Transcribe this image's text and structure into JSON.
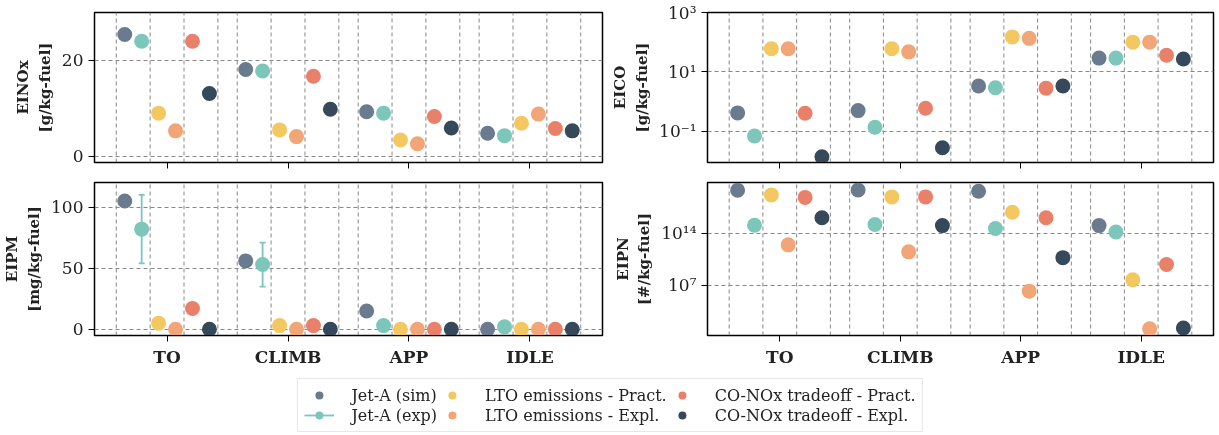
{
  "chart_data": [
    {
      "type": "scatter",
      "ylabel": "EINOx\n[g/kg-fuel]",
      "categories": [
        "TO",
        "CLIMB",
        "APP",
        "IDLE"
      ],
      "ylim": [
        -1.3,
        30
      ],
      "yticks": [
        0,
        20
      ],
      "grid": true,
      "tick_labels": "y",
      "legend": "bottom",
      "marker": "circle",
      "series": [
        {
          "name": "Jet-A (sim)",
          "color": "#6b7b8f",
          "values": [
            25.4,
            18.1,
            9.3,
            4.8
          ]
        },
        {
          "name": "Jet-A (exp)",
          "color": "#7cc6ba",
          "values": [
            24.0,
            17.8,
            9.0,
            4.3
          ]
        },
        {
          "name": "LTO emissions - Pract.",
          "color": "#f4c860",
          "values": [
            9.0,
            5.5,
            3.4,
            6.9
          ]
        },
        {
          "name": "LTO emissions - Expl.",
          "color": "#f2a576",
          "values": [
            5.3,
            4.1,
            2.6,
            8.8
          ]
        },
        {
          "name": "CO-NOx tradeoff - Pract.",
          "color": "#e9806a",
          "values": [
            24.0,
            16.7,
            8.3,
            5.8
          ]
        },
        {
          "name": "CO-NOx tradeoff - Expl.",
          "color": "#36495a",
          "values": [
            13.1,
            9.8,
            5.9,
            5.3
          ]
        }
      ]
    },
    {
      "type": "scatter",
      "ylabel": "EICO\n[g/kg-fuel]",
      "categories": [
        "TO",
        "CLIMB",
        "APP",
        "IDLE"
      ],
      "log": true,
      "ylim": [
        0.0087,
        1000
      ],
      "yticks": [
        {
          "value": 0.1,
          "label": "10⁻¹"
        },
        {
          "value": 10,
          "label": "10¹"
        },
        {
          "value": 1000,
          "label": "10³"
        }
      ],
      "grid": true,
      "tick_labels": "y",
      "marker": "circle",
      "series": [
        {
          "color": "#6b7b8f",
          "values": [
            0.41,
            0.49,
            3.3,
            29
          ]
        },
        {
          "color": "#7cc6ba",
          "values": [
            0.068,
            0.135,
            2.9,
            29
          ]
        },
        {
          "color": "#f4c860",
          "values": [
            60,
            60,
            150,
            100
          ]
        },
        {
          "color": "#f2a576",
          "values": [
            60,
            47,
            134,
            100
          ]
        },
        {
          "color": "#e9806a",
          "values": [
            0.4,
            0.59,
            2.8,
            36
          ]
        },
        {
          "color": "#36495a",
          "values": [
            0.0135,
            0.0275,
            3.3,
            27
          ]
        }
      ]
    },
    {
      "type": "scatter",
      "ylabel": "EIPM\n[mg/kg-fuel]",
      "categories": [
        "TO",
        "CLIMB",
        "APP",
        "IDLE"
      ],
      "ylim": [
        -5.1,
        120.2
      ],
      "yticks": [
        0,
        50,
        100
      ],
      "grid": true,
      "marker": "circle",
      "series": [
        {
          "color": "#6b7b8f",
          "values": [
            105,
            56,
            15,
            0
          ]
        },
        {
          "color": "#7cc6ba",
          "values": [
            82,
            53,
            3,
            2
          ],
          "errors": [
            [
              54,
              110
            ],
            [
              35,
              71
            ],
            null,
            null
          ]
        },
        {
          "color": "#f4c860",
          "values": [
            5,
            3,
            0,
            0
          ]
        },
        {
          "color": "#f2a576",
          "values": [
            0,
            0,
            0,
            0
          ]
        },
        {
          "color": "#e9806a",
          "values": [
            17,
            3,
            0,
            0
          ]
        },
        {
          "color": "#36495a",
          "values": [
            0,
            0,
            0,
            0
          ]
        }
      ]
    },
    {
      "type": "scatter",
      "ylabel": "EIPN\n[#/kg-fuel]",
      "categories": [
        "TO",
        "CLIMB",
        "APP",
        "IDLE"
      ],
      "log": true,
      "ylim": [
        1.8,
        6e+20
      ],
      "yticks": [
        {
          "value": 10000000.0,
          "label": "10⁷"
        },
        {
          "value": 100000000000000.0,
          "label": "10¹⁴"
        }
      ],
      "grid": true,
      "marker": "circle",
      "series": [
        {
          "color": "#6b7b8f",
          "values": [
            5.5e+19,
            6e+19,
            4e+19,
            1000000000000000.0
          ]
        },
        {
          "color": "#7cc6ba",
          "values": [
            1100000000000000.0,
            1400000000000000.0,
            400000000000000.0,
            140000000000000.0
          ]
        },
        {
          "color": "#f4c860",
          "values": [
            1.3e+19,
            7e+18,
            6e+16,
            55000000.0
          ]
        },
        {
          "color": "#f2a576",
          "values": [
            2600000000000.0,
            300000000000.0,
            1600000.0,
            14
          ]
        },
        {
          "color": "#e9806a",
          "values": [
            6e+18,
            7e+18,
            1.1e+16,
            6000000000.0
          ]
        },
        {
          "color": "#36495a",
          "values": [
            1.1e+16,
            1000000000000000.0,
            50000000000.0,
            18
          ]
        }
      ]
    }
  ]
}
